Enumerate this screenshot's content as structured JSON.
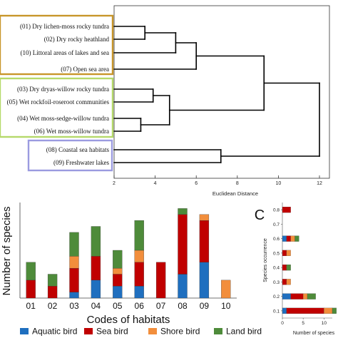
{
  "chart_data": [
    {
      "type": "dendrogram",
      "xlabel": "Euclidean Distance",
      "xlim": [
        2,
        12
      ],
      "xticks": [
        2,
        4,
        6,
        8,
        10,
        12
      ],
      "leaves": [
        "(01) Dry lichen-moss rocky tundra",
        "(02) Dry rocky heathland",
        "(10) Littoral areas of lakes and sea",
        "(07) Open sea area",
        "(03) Dry dryas-willow rocky tundra",
        "(05) Wet rockfoil-roseroot communities",
        "(04) Wet moss-sedge-willow tundra",
        "(06) Wet moss-willow tundra",
        "(08) Coastal sea habitats",
        "(09) Freshwater lakes"
      ],
      "merges": [
        {
          "a": "(01) Dry lichen-moss rocky tundra",
          "b": "(02) Dry rocky heathland",
          "height": 3.5
        },
        {
          "a": "(01)+(02)",
          "b": "(10) Littoral areas of lakes and sea",
          "height": 5.0
        },
        {
          "a": "(01)+(02)+(10)",
          "b": "(07) Open sea area",
          "height": 6.0
        },
        {
          "a": "(03) Dry dryas-willow rocky tundra",
          "b": "(05) Wet rockfoil-roseroot communities",
          "height": 3.9
        },
        {
          "a": "(04) Wet moss-sedge-willow tundra",
          "b": "(06) Wet moss-willow tundra",
          "height": 3.3
        },
        {
          "a": "(03)+(05)",
          "b": "(04)+(06)",
          "height": 4.7
        },
        {
          "a": "(01)+(02)+(10)+(07)",
          "b": "(03)+(05)+(04)+(06)",
          "height": 9.3
        },
        {
          "a": "(08) Coastal sea habitats",
          "b": "(09) Freshwater lakes",
          "height": 7.2
        },
        {
          "a": "cluster 1",
          "b": "(08)+(09)",
          "height": 12.0
        }
      ],
      "groups": [
        {
          "members": [
            "01",
            "02",
            "10",
            "07"
          ],
          "color": "#c8962a"
        },
        {
          "members": [
            "03",
            "05",
            "04",
            "06"
          ],
          "color": "#b5d96a"
        },
        {
          "members": [
            "08",
            "09"
          ],
          "color": "#9b9be0"
        }
      ]
    },
    {
      "type": "bar",
      "stacked": true,
      "xlabel": "Codes of habitats",
      "ylabel": "Number of species",
      "categories": [
        "01",
        "02",
        "03",
        "04",
        "05",
        "06",
        "07",
        "08",
        "09",
        "10"
      ],
      "ylim": [
        0,
        16
      ],
      "series": [
        {
          "name": "Aquatic bird",
          "color": "#1f6fbf",
          "values": [
            0,
            0,
            1,
            3,
            2,
            2,
            0,
            4,
            6,
            0
          ]
        },
        {
          "name": "Sea bird",
          "color": "#c00000",
          "values": [
            3,
            2,
            4,
            4,
            2,
            4,
            6,
            10,
            7,
            0
          ]
        },
        {
          "name": "Shore bird",
          "color": "#f28e3c",
          "values": [
            0,
            0,
            2,
            0,
            1,
            2,
            0,
            0,
            1,
            3
          ]
        },
        {
          "name": "Land bird",
          "color": "#4e8b3a",
          "values": [
            3,
            2,
            4,
            5,
            3,
            5,
            0,
            1,
            0,
            0
          ]
        }
      ],
      "legend": "bottom"
    },
    {
      "type": "bar",
      "orientation": "horizontal",
      "stacked": true,
      "panel_label": "C",
      "xlabel": "Number of species",
      "ylabel": "Species occurrence",
      "categories": [
        "0.1",
        "0.2",
        "0.3",
        "0.4",
        "0.5",
        "0.6",
        "0.7",
        "0.8"
      ],
      "xlim": [
        0,
        12
      ],
      "xticks": [
        0,
        5,
        10
      ],
      "series": [
        {
          "name": "Aquatic bird",
          "color": "#1f6fbf",
          "values": [
            1,
            2,
            0,
            0,
            0,
            1,
            0,
            0
          ]
        },
        {
          "name": "Sea bird",
          "color": "#c00000",
          "values": [
            9,
            3,
            1,
            1,
            1,
            1,
            0,
            2
          ]
        },
        {
          "name": "Shore bird",
          "color": "#f28e3c",
          "values": [
            2,
            1,
            1,
            0,
            1,
            1,
            0,
            0
          ]
        },
        {
          "name": "Land bird",
          "color": "#4e8b3a",
          "values": [
            1,
            2,
            0,
            1,
            0,
            1,
            0,
            0
          ]
        }
      ]
    }
  ]
}
